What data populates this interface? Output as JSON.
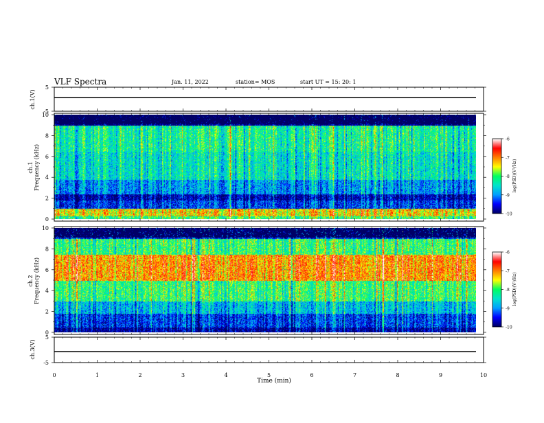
{
  "header": {
    "title": "VLF Spectra",
    "date": "Jan. 11, 2022",
    "station": "station= MOS",
    "start": "start UT = 15: 20: 1"
  },
  "colors": {
    "colormap": [
      "#000066",
      "#0000ff",
      "#00a0ff",
      "#00e5cc",
      "#00ff60",
      "#ffff00",
      "#ff8000",
      "#ff0000",
      "#ffffff"
    ]
  },
  "chart_data": [
    {
      "type": "line",
      "panel": "ch.1 waveform",
      "ylabel": "ch.1(V)",
      "ylim": [
        -5,
        5
      ],
      "yticks": [
        "5",
        "-5"
      ],
      "x": [
        0,
        10
      ],
      "series": [
        {
          "values": [
            0,
            0
          ]
        }
      ]
    },
    {
      "type": "heatmap",
      "panel": "ch.1 spectrogram",
      "ylabel_top": "ch.1",
      "ylabel": "Frequency (kHz)",
      "ylim": [
        0,
        10
      ],
      "yticks": [
        "0",
        "2",
        "4",
        "6",
        "8",
        "10"
      ],
      "xlim": [
        0,
        9.85
      ],
      "colorbar": {
        "label": "log(PSD)(V²/Hz)",
        "range": [
          -10,
          -6
        ],
        "ticks": [
          "-6",
          "-7",
          "-8",
          "-9",
          "-10"
        ]
      },
      "description_levels": {
        "0-0.3kHz": -8.0,
        "0.3-1.0kHz": -7.3,
        "1.0-1.8kHz": -9.3,
        "1.8-2.4kHz": -9.7,
        "2.4-3.8kHz": -8.9,
        "3.8-6.5kHz": -8.4,
        "6.5-9.0kHz": -8.2,
        "9.0-10kHz": -9.9
      }
    },
    {
      "type": "heatmap",
      "panel": "ch.2 spectrogram",
      "ylabel_top": "ch.2",
      "ylabel": "Frequency (kHz)",
      "ylim": [
        0,
        10
      ],
      "yticks": [
        "0",
        "2",
        "4",
        "6",
        "8",
        "10"
      ],
      "xlim": [
        0,
        9.85
      ],
      "colorbar": {
        "label": "log(PSD)(V²/Hz)",
        "range": [
          -10,
          -6
        ],
        "ticks": [
          "-6",
          "-7",
          "-8",
          "-9",
          "-10"
        ]
      },
      "description_levels": {
        "0-0.5kHz": -9.8,
        "0.5-1.8kHz": -9.3,
        "1.8-3.0kHz": -8.7,
        "3.0-5.0kHz": -8.0,
        "5.0-7.5kHz": -7.0,
        "7.5-9.0kHz": -8.0,
        "9.0-10kHz": -9.4
      }
    },
    {
      "type": "line",
      "panel": "ch.3 waveform",
      "ylabel": "ch.3(V)",
      "ylim": [
        -5,
        5
      ],
      "yticks": [
        "5",
        "-5"
      ],
      "x": [
        0,
        10
      ],
      "series": [
        {
          "values": [
            0,
            0
          ]
        }
      ]
    }
  ],
  "xaxis": {
    "label": "Time (min)",
    "ticks": [
      "0",
      "1",
      "2",
      "3",
      "4",
      "5",
      "6",
      "7",
      "8",
      "9",
      "10"
    ],
    "range": [
      0,
      10
    ]
  }
}
